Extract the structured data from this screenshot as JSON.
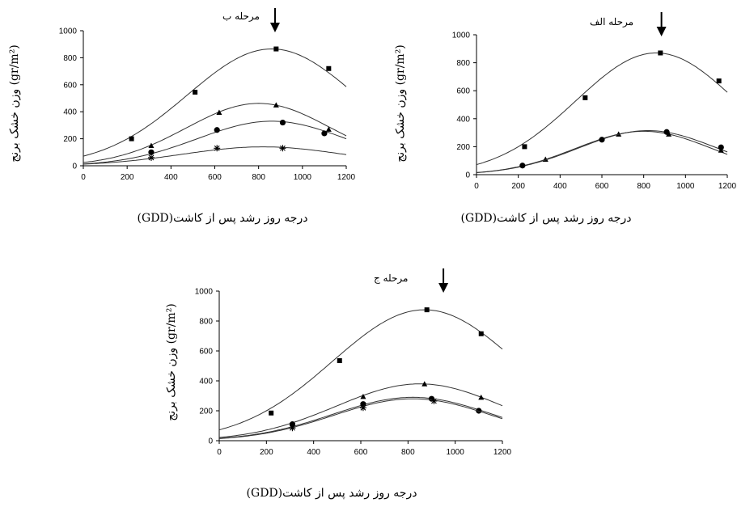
{
  "chart_data": [
    {
      "id": "b",
      "type": "scatter",
      "stage_label": "مرحله ب",
      "xlabel": "درجه روز رشد پس از کاشت(GDD)",
      "ylabel": "وزن خشک برنج (gr/m²)",
      "xlim": [
        0,
        1200
      ],
      "ylim": [
        0,
        1000
      ],
      "xticks": [
        0,
        200,
        400,
        600,
        800,
        1000,
        1200
      ],
      "yticks": [
        0,
        200,
        400,
        600,
        800,
        1000
      ],
      "arrow_x": 875,
      "series": [
        {
          "marker": "square",
          "points": [
            [
              220,
              200
            ],
            [
              510,
              545
            ],
            [
              880,
              865
            ],
            [
              1120,
              720
            ]
          ],
          "curve": {
            "a": 865,
            "b": 860,
            "c": 385
          }
        },
        {
          "marker": "triangle",
          "points": [
            [
              310,
              150
            ],
            [
              620,
              395
            ],
            [
              880,
              450
            ],
            [
              1120,
              270
            ]
          ],
          "curve": {
            "a": 462,
            "b": 800,
            "c": 330
          }
        },
        {
          "marker": "circle",
          "points": [
            [
              310,
              100
            ],
            [
              610,
              265
            ],
            [
              910,
              320
            ],
            [
              1100,
              240
            ]
          ],
          "curve": {
            "a": 330,
            "b": 860,
            "c": 340
          }
        },
        {
          "marker": "star",
          "points": [
            [
              310,
              60
            ],
            [
              610,
              130
            ],
            [
              910,
              130
            ]
          ],
          "curve": {
            "a": 140,
            "b": 820,
            "c": 370
          }
        }
      ]
    },
    {
      "id": "alef",
      "type": "scatter",
      "stage_label": "مرحله الف",
      "xlabel": "درجه روز رشد پس از کاشت(GDD)",
      "ylabel": "وزن خشک برنج (gr/m²)",
      "xlim": [
        0,
        1200
      ],
      "ylim": [
        0,
        1000
      ],
      "xticks": [
        0,
        200,
        400,
        600,
        800,
        1000,
        1200
      ],
      "yticks": [
        0,
        200,
        400,
        600,
        800,
        1000
      ],
      "arrow_x": 885,
      "series": [
        {
          "marker": "square",
          "points": [
            [
              230,
              200
            ],
            [
              520,
              550
            ],
            [
              880,
              870
            ],
            [
              1160,
              670
            ]
          ],
          "curve": {
            "a": 870,
            "b": 860,
            "c": 385
          }
        },
        {
          "marker": "triangle",
          "points": [
            [
              330,
              110
            ],
            [
              680,
              290
            ],
            [
              920,
              290
            ],
            [
              1170,
              175
            ]
          ],
          "curve": {
            "a": 310,
            "b": 800,
            "c": 325
          }
        },
        {
          "marker": "circle",
          "points": [
            [
              220,
              65
            ],
            [
              600,
              250
            ],
            [
              910,
              305
            ],
            [
              1170,
              195
            ]
          ],
          "curve": {
            "a": 315,
            "b": 820,
            "c": 330
          }
        }
      ]
    },
    {
      "id": "jim",
      "type": "scatter",
      "stage_label": "مرحله ج",
      "xlabel": "درجه روز رشد پس از کاشت(GDD)",
      "ylabel": "وزن خشک برنج (gr/m²)",
      "xlim": [
        0,
        1200
      ],
      "ylim": [
        0,
        1000
      ],
      "xticks": [
        0,
        200,
        400,
        600,
        800,
        1000,
        1200
      ],
      "yticks": [
        0,
        200,
        400,
        600,
        800,
        1000
      ],
      "arrow_x": 950,
      "series": [
        {
          "marker": "square",
          "points": [
            [
              220,
              185
            ],
            [
              510,
              535
            ],
            [
              880,
              875
            ],
            [
              1110,
              715
            ]
          ],
          "curve": {
            "a": 875,
            "b": 870,
            "c": 390
          }
        },
        {
          "marker": "triangle",
          "points": [
            [
              610,
              295
            ],
            [
              870,
              380
            ],
            [
              1110,
              290
            ]
          ],
          "curve": {
            "a": 380,
            "b": 850,
            "c": 355
          }
        },
        {
          "marker": "circle",
          "points": [
            [
              310,
              110
            ],
            [
              610,
              245
            ],
            [
              900,
              280
            ],
            [
              1100,
              200
            ]
          ],
          "curve": {
            "a": 290,
            "b": 820,
            "c": 340
          }
        },
        {
          "marker": "star",
          "points": [
            [
              310,
              85
            ],
            [
              610,
              220
            ],
            [
              910,
              265
            ]
          ],
          "curve": {
            "a": 280,
            "b": 820,
            "c": 335
          }
        }
      ]
    }
  ]
}
